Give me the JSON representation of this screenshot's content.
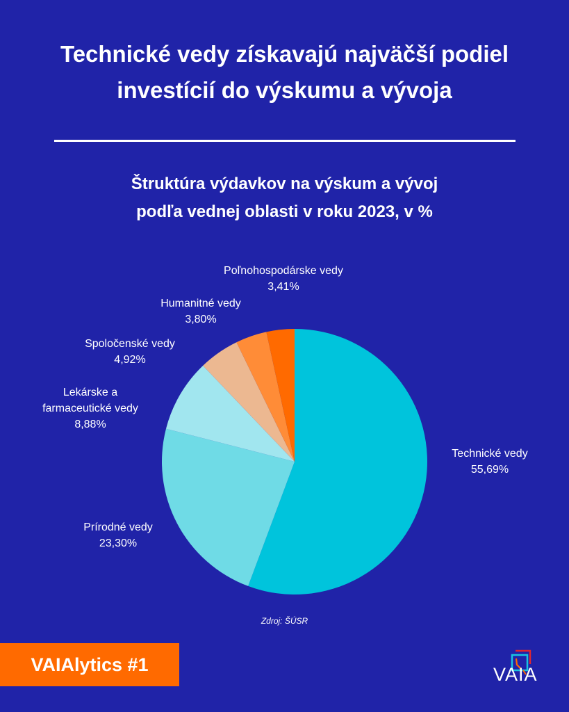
{
  "title": "Technické vedy získavajú najväčší podiel\ninvestícií do výskumu a vývoja",
  "chart_data": {
    "type": "pie",
    "title": "Štruktúra výdavkov na výskum a vývoj\npodľa vednej oblasti v roku 2023, v %",
    "categories": [
      "Technické vedy",
      "Prírodné vedy",
      "Lekárske a\nfarmaceutické vedy",
      "Spoločenské vedy",
      "Humanitné vedy",
      "Poľnohospodárske vedy"
    ],
    "values": [
      55.69,
      23.3,
      8.88,
      4.92,
      3.8,
      3.41
    ],
    "value_labels": [
      "55,69%",
      "23,30%",
      "8,88%",
      "4,92%",
      "3,80%",
      "3,41%"
    ],
    "colors": [
      "#00c4dc",
      "#6fdbe6",
      "#a1e6ef",
      "#ecb891",
      "#ff8c37",
      "#ff6a00"
    ],
    "start": "top",
    "direction": "clockwise"
  },
  "source": "Zdroj: ŠÚSR",
  "badge": "VAIAlytics #1",
  "logo": "VAIA",
  "colors": {
    "background": "#2023a8",
    "badge": "#ff6a00"
  }
}
